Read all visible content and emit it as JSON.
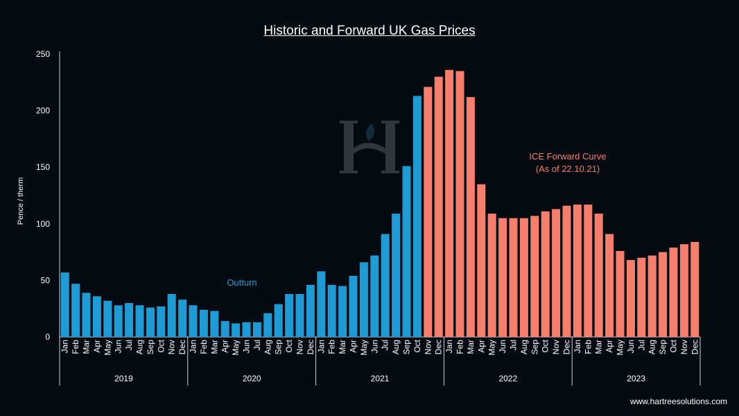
{
  "chart_data": {
    "type": "bar",
    "title": "Historic and Forward UK Gas Prices",
    "ylabel": "Pence / therm",
    "ylim": [
      0,
      250
    ],
    "yticks": [
      0,
      50,
      100,
      150,
      200,
      250
    ],
    "grid": false,
    "months": [
      "Jan",
      "Feb",
      "Mar",
      "Apr",
      "May",
      "Jun",
      "Jul",
      "Aug",
      "Sep",
      "Oct",
      "Nov",
      "Dec"
    ],
    "years": [
      "2019",
      "2020",
      "2021",
      "2022",
      "2023"
    ],
    "series": [
      {
        "name": "Outturn",
        "color": "#1e9bd4",
        "values": [
          57,
          47,
          39,
          36,
          32,
          28,
          30,
          28,
          26,
          27,
          38,
          33,
          28,
          24,
          23,
          14,
          12,
          13,
          13,
          21,
          29,
          38,
          38,
          46,
          58,
          46,
          45,
          54,
          66,
          72,
          91,
          109,
          151,
          213
        ]
      },
      {
        "name": "ICE Forward Curve",
        "color": "#f57e6c",
        "values": [
          221,
          230,
          236,
          235,
          212,
          135,
          109,
          105,
          105,
          105,
          107,
          111,
          113,
          116,
          117,
          117,
          109,
          91,
          76,
          68,
          70,
          72,
          75,
          79,
          82,
          84
        ]
      }
    ],
    "annotations": [
      {
        "text": "Outturn",
        "color": "#1e9bd4"
      },
      {
        "text": "ICE Forward Curve",
        "color": "#f57e6c"
      },
      {
        "text": "(As of 22.10.21)",
        "color": "#f57e6c"
      }
    ]
  },
  "footer": "www.hartreesolutions.com",
  "watermark": {
    "icon": "hartree-h-logo-icon"
  }
}
